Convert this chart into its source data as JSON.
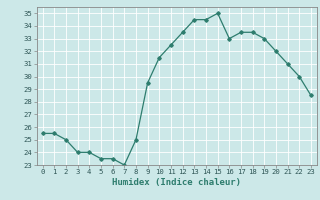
{
  "x": [
    0,
    1,
    2,
    3,
    4,
    5,
    6,
    7,
    8,
    9,
    10,
    11,
    12,
    13,
    14,
    15,
    16,
    17,
    18,
    19,
    20,
    21,
    22,
    23
  ],
  "y": [
    25.5,
    25.5,
    25.0,
    24.0,
    24.0,
    23.5,
    23.5,
    23.0,
    25.0,
    29.5,
    31.5,
    32.5,
    33.5,
    34.5,
    34.5,
    35.0,
    33.0,
    33.5,
    33.5,
    33.0,
    32.0,
    31.0,
    30.0,
    28.5
  ],
  "line_color": "#2e7d6e",
  "bg_color": "#cce8e8",
  "grid_color": "#b0d0d0",
  "xlabel": "Humidex (Indice chaleur)",
  "xlim": [
    -0.5,
    23.5
  ],
  "ylim": [
    23,
    35.5
  ],
  "yticks": [
    23,
    24,
    25,
    26,
    27,
    28,
    29,
    30,
    31,
    32,
    33,
    34,
    35
  ],
  "xticks": [
    0,
    1,
    2,
    3,
    4,
    5,
    6,
    7,
    8,
    9,
    10,
    11,
    12,
    13,
    14,
    15,
    16,
    17,
    18,
    19,
    20,
    21,
    22,
    23
  ],
  "tick_label_fontsize": 5.2,
  "xlabel_fontsize": 6.5,
  "marker": "D",
  "marker_size": 1.8,
  "line_width": 0.9
}
